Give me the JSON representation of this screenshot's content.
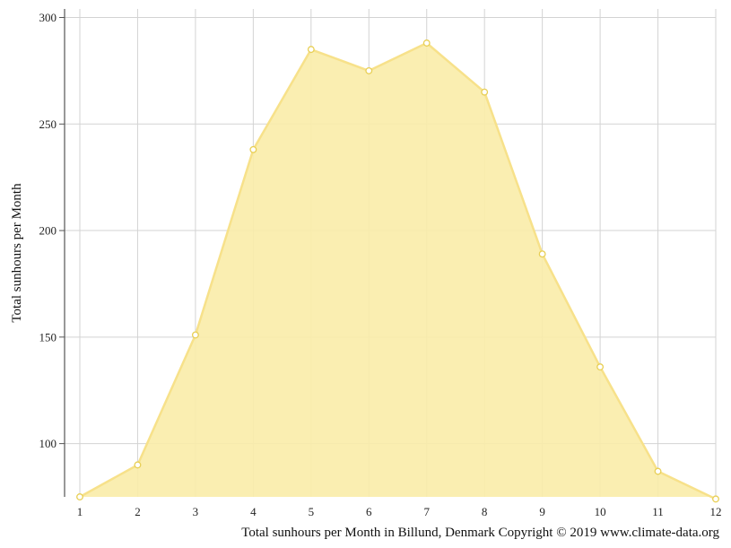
{
  "chart_data": {
    "type": "area",
    "x": [
      1,
      2,
      3,
      4,
      5,
      6,
      7,
      8,
      9,
      10,
      11,
      12
    ],
    "series": [
      {
        "values": [
          75,
          90,
          151,
          238,
          285,
          275,
          288,
          265,
          189,
          136,
          87,
          74
        ]
      }
    ],
    "ylabel": "Total sunhours per Month",
    "xlabel": "",
    "yticks": [
      100,
      150,
      200,
      250,
      300
    ],
    "xticks": [
      "1",
      "2",
      "3",
      "4",
      "5",
      "6",
      "7",
      "8",
      "9",
      "10",
      "11",
      "12"
    ],
    "ylim": [
      75,
      304
    ],
    "xlim": [
      1,
      12
    ],
    "grid": true,
    "colors": {
      "fill": "#f9eca8",
      "line": "#f7e18a",
      "marker": "#e8cf55",
      "grid": "#d3d3d3",
      "axis": "#555555"
    }
  },
  "caption": "Total sunhours per Month in Billund, Denmark Copyright © 2019 www.climate-data.org"
}
